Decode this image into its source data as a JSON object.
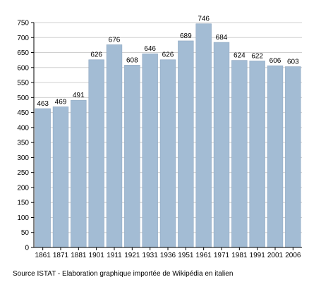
{
  "chart_data": {
    "type": "bar",
    "categories": [
      "1861",
      "1871",
      "1881",
      "1901",
      "1911",
      "1921",
      "1931",
      "1936",
      "1951",
      "1961",
      "1971",
      "1981",
      "1991",
      "2001",
      "2006"
    ],
    "values": [
      463,
      469,
      491,
      626,
      676,
      608,
      646,
      626,
      689,
      746,
      684,
      624,
      622,
      606,
      603
    ],
    "ylim": [
      0,
      750
    ],
    "yticks": [
      0,
      50,
      100,
      150,
      200,
      250,
      300,
      350,
      400,
      450,
      500,
      550,
      600,
      650,
      700,
      750
    ],
    "grid": true,
    "colors": {
      "bar": "#a3bcd4",
      "bar_edge": "#8fa8c2",
      "grid": "#d0d0d0",
      "axis": "#000000"
    }
  },
  "source": "Source ISTAT - Elaboration graphique importée de Wikipédia en italien"
}
